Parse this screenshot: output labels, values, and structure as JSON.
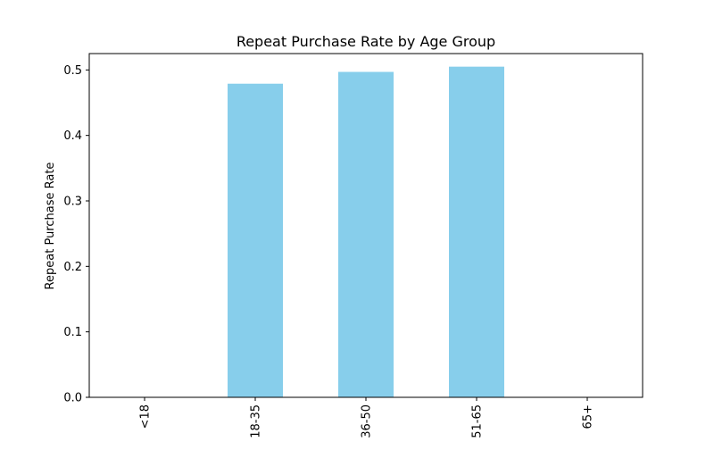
{
  "chart_data": {
    "type": "bar",
    "title": "Repeat Purchase Rate by Age Group",
    "xlabel": "",
    "ylabel": "Repeat Purchase Rate",
    "categories": [
      "<18",
      "18-35",
      "36-50",
      "51-65",
      "65+"
    ],
    "values": [
      0,
      0.479,
      0.497,
      0.505,
      0
    ],
    "ylim": [
      0,
      0.525
    ],
    "yticks": [
      0.0,
      0.1,
      0.2,
      0.3,
      0.4,
      0.5
    ],
    "ytick_labels": [
      "0.0",
      "0.1",
      "0.2",
      "0.3",
      "0.4",
      "0.5"
    ],
    "bar_color": "#87ceeb",
    "grid": false,
    "legend": "none",
    "xtick_rotation": "vertical"
  }
}
